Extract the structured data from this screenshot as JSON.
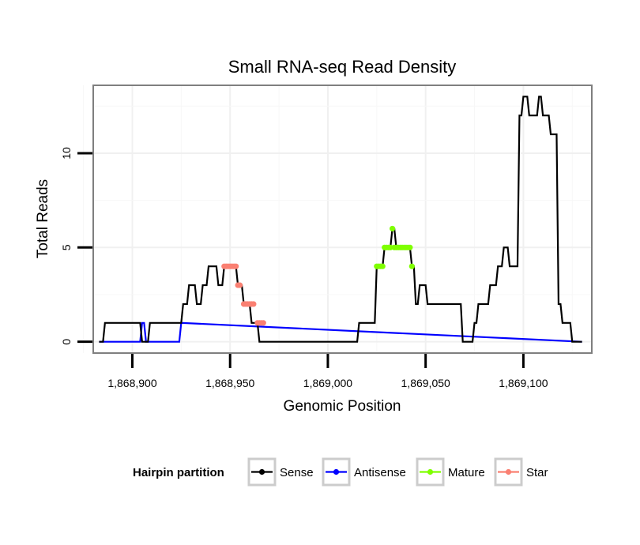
{
  "chart_data": {
    "type": "line",
    "title": "Small RNA-seq Read Density",
    "xlabel": "Genomic Position",
    "ylabel": "Total Reads",
    "xlim": [
      1868880,
      1869135
    ],
    "ylim": [
      -0.6,
      13.6
    ],
    "x_ticks": [
      {
        "value": 1868900,
        "label": "1,868,900"
      },
      {
        "value": 1868950,
        "label": "1,868,950"
      },
      {
        "value": 1869000,
        "label": "1,869,000"
      },
      {
        "value": 1869050,
        "label": "1,869,050"
      },
      {
        "value": 1869100,
        "label": "1,869,100"
      }
    ],
    "y_ticks": [
      {
        "value": 0,
        "label": "0"
      },
      {
        "value": 5,
        "label": "5"
      },
      {
        "value": 10,
        "label": "10"
      }
    ],
    "legend": {
      "title": "Hairpin partition",
      "position": "bottom",
      "entries": [
        {
          "label": "Sense",
          "color": "#000000"
        },
        {
          "label": "Antisense",
          "color": "#0000ff"
        },
        {
          "label": "Mature",
          "color": "#7fff00"
        },
        {
          "label": "Star",
          "color": "#fa8072"
        }
      ]
    },
    "series": [
      {
        "name": "Sense",
        "color": "#000000",
        "x": [
          1868883,
          1868885,
          1868886,
          1868904,
          1868905,
          1868908,
          1868909,
          1868925,
          1868926,
          1868928,
          1868929,
          1868932,
          1868933,
          1868935,
          1868936,
          1868938,
          1868939,
          1868943,
          1868944,
          1868946,
          1868947,
          1868953,
          1868954,
          1868956,
          1868957,
          1868960,
          1868961,
          1868964,
          1868965,
          1868967,
          1868968,
          1868969,
          1868970,
          1869015,
          1869016,
          1869024,
          1869025,
          1869028,
          1869029,
          1869032,
          1869033,
          1869034,
          1869035,
          1869042,
          1869043,
          1869044,
          1869045,
          1869046,
          1869047,
          1869050,
          1869051,
          1869068,
          1869069,
          1869072,
          1869073,
          1869074,
          1869075,
          1869076,
          1869077,
          1869082,
          1869083,
          1869086,
          1869087,
          1869089,
          1869090,
          1869092,
          1869093,
          1869097,
          1869098,
          1869099,
          1869100,
          1869102,
          1869103,
          1869107,
          1869108,
          1869109,
          1869110,
          1869113,
          1869114,
          1869117,
          1869118,
          1869119,
          1869120,
          1869124,
          1869125,
          1869130
        ],
        "values": [
          0,
          0,
          1,
          1,
          0,
          0,
          1,
          1,
          2,
          2,
          3,
          3,
          2,
          2,
          3,
          3,
          4,
          4,
          3,
          3,
          4,
          4,
          3,
          3,
          2,
          2,
          1,
          1,
          0,
          0,
          0,
          0,
          0,
          0,
          1,
          1,
          4,
          4,
          5,
          5,
          6,
          6,
          5,
          5,
          4,
          4,
          2,
          2,
          3,
          3,
          2,
          2,
          0,
          0,
          0,
          0,
          1,
          1,
          2,
          2,
          3,
          3,
          4,
          4,
          5,
          5,
          4,
          4,
          12,
          12,
          13,
          13,
          12,
          12,
          13,
          13,
          12,
          12,
          11,
          11,
          2,
          2,
          1,
          1,
          0,
          0
        ]
      },
      {
        "name": "Antisense",
        "color": "#0000ff",
        "x": [
          1868883,
          1868904,
          1868905,
          1868906,
          1868907,
          1868924,
          1868925,
          1869130
        ],
        "values": [
          0,
          0,
          1,
          1,
          0,
          0,
          1,
          0
        ]
      }
    ],
    "point_series": [
      {
        "name": "Star",
        "color": "#fa8072",
        "x": [
          1868947,
          1868948,
          1868949,
          1868950,
          1868951,
          1868952,
          1868953,
          1868954,
          1868955,
          1868957,
          1868958,
          1868959,
          1868960,
          1868961,
          1868962,
          1868964,
          1868965,
          1868966,
          1868967
        ],
        "values": [
          4,
          4,
          4,
          4,
          4,
          4,
          4,
          3,
          3,
          2,
          2,
          2,
          2,
          2,
          2,
          1,
          1,
          1,
          1
        ]
      },
      {
        "name": "Mature",
        "color": "#7fff00",
        "x": [
          1869025,
          1869026,
          1869027,
          1869028,
          1869029,
          1869030,
          1869031,
          1869032,
          1869033,
          1869034,
          1869035,
          1869036,
          1869037,
          1869038,
          1869039,
          1869040,
          1869041,
          1869042,
          1869043
        ],
        "values": [
          4,
          4,
          4,
          4,
          5,
          5,
          5,
          5,
          6,
          5,
          5,
          5,
          5,
          5,
          5,
          5,
          5,
          5,
          4
        ]
      }
    ]
  }
}
